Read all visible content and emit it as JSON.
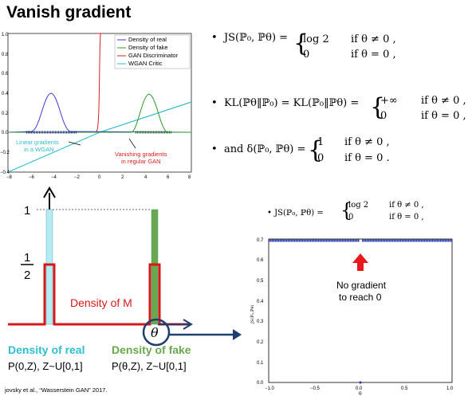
{
  "page": {
    "title": "Vanish gradient"
  },
  "top_chart": {
    "legend": [
      "Density of real",
      "Density of fake",
      "GAN Discriminator",
      "WGAN Critic"
    ],
    "colors": {
      "real": "#3b3bd6",
      "fake": "#2e9a2e",
      "gan": "#d62020",
      "wgan": "#2fbfd0"
    },
    "annotations": {
      "linear": "Linear gradients\nin a WGAN",
      "vanishing": "Vanishing gradients\nin regular GAN"
    },
    "x_ticks": [
      "−8",
      "−6",
      "−4",
      "−2",
      "0",
      "2",
      "4",
      "6",
      "8"
    ],
    "y_ticks": [
      "1.0",
      "0.8",
      "0.6",
      "0.4",
      "0.2",
      "0.0",
      "−0.2",
      "−0.4"
    ]
  },
  "equations": {
    "js_lhs": "JS(ℙ₀, ℙθ) = ",
    "js_row1_val": "log 2",
    "js_row1_cond": "if θ ≠ 0 ,",
    "js_row2_val": "0",
    "js_row2_cond": "if θ = 0 ,",
    "kl_lhs": "KL(ℙθ‖ℙ₀) = KL(ℙ₀‖ℙθ) = ",
    "kl_row1_val": "+∞",
    "kl_row1_cond": "if θ ≠ 0 ,",
    "kl_row2_val": "0",
    "kl_row2_cond": "if θ = 0 ,",
    "delta_lhs": "and δ(ℙ₀, ℙθ) = ",
    "delta_row1_val": "1",
    "delta_row1_cond": "if θ ≠ 0 ,",
    "delta_row2_val": "0",
    "delta_row2_cond": "if θ = 0 .",
    "js2_lhs": "JS(ℙ₀, ℙθ) = ",
    "js2_row1_val": "log 2",
    "js2_row1_cond": "if θ ≠ 0 ,",
    "js2_row2_val": "0",
    "js2_row2_cond": "if θ = 0 ,"
  },
  "bottom_diagram": {
    "label_one": "1",
    "label_half_num": "1",
    "label_half_den": "2",
    "density_m": "Density of M",
    "theta": "θ",
    "real_title": "Density of real",
    "real_sub": "P(0,Z), Z~U[0,1]",
    "fake_title": "Density of fake",
    "fake_sub": "P(θ,Z), Z~U[0,1]",
    "colors": {
      "red": "#d81818",
      "cyan": "#b3ecf5",
      "green": "#6aa84f",
      "navy": "#1f3f6e"
    }
  },
  "bottom_chart": {
    "annotation_line1": "No gradient",
    "annotation_line2": "to reach 0",
    "y_label": "JS(ℙ₀,ℙθ)",
    "x_label": "θ",
    "x_ticks": [
      "−1.0",
      "−0.5",
      "0.0",
      "0.5",
      "1.0"
    ],
    "y_ticks": [
      "0.7",
      "0.6",
      "0.5",
      "0.4",
      "0.3",
      "0.2",
      "0.1",
      "0.0"
    ]
  },
  "citation": "jovsky et al., “Wasserstein GAN” 2017."
}
